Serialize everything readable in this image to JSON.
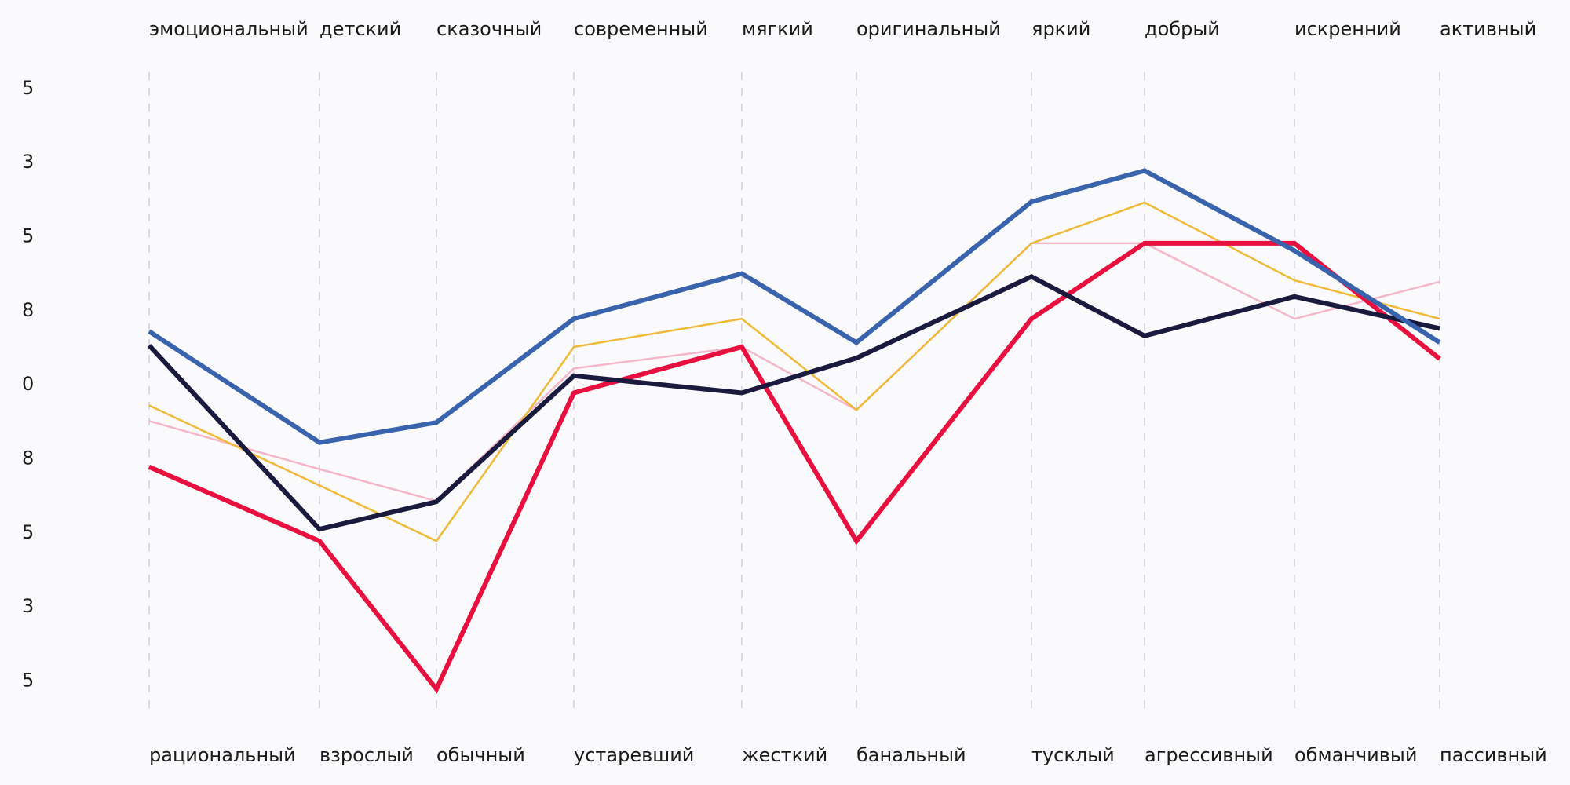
{
  "chart_data": {
    "type": "line",
    "categories": [
      "эмоциональный",
      "детский",
      "сказочный",
      "современный",
      "мягкий",
      "оригинальный",
      "яркий",
      "добрый",
      "искренний",
      "активный"
    ],
    "categories_bottom": [
      "рациональный",
      "взрослый",
      "обычный",
      "устаревший",
      "жесткий",
      "банальный",
      "тусклый",
      "агрессивный",
      "обманчивый",
      "пассивный"
    ],
    "ylim": [
      -4.43,
      4.22
    ],
    "yticks": [
      {
        "value": 4,
        "label": "5"
      },
      {
        "value": 3,
        "label": "3"
      },
      {
        "value": 2,
        "label": "5"
      },
      {
        "value": 1,
        "label": "8"
      },
      0,
      {
        "value": -1,
        "label": "8"
      },
      {
        "value": -2,
        "label": "5"
      },
      {
        "value": -3,
        "label": "3"
      },
      {
        "value": -4,
        "label": "5"
      }
    ],
    "series": [
      {
        "color": "#f4b6c8",
        "width": "thin",
        "values": [
          -0.49,
          -1.14,
          -1.57,
          0.22,
          0.51,
          -0.34,
          1.91,
          1.91,
          0.89,
          1.39
        ]
      },
      {
        "color": "#f0b93a",
        "width": "thin",
        "values": [
          -0.28,
          -1.36,
          -2.11,
          0.51,
          0.89,
          -0.34,
          1.91,
          2.46,
          1.41,
          0.89
        ]
      },
      {
        "color": "#e8103f",
        "width": "thick",
        "values": [
          -1.11,
          -2.11,
          -4.11,
          -0.11,
          0.51,
          -2.11,
          0.89,
          1.91,
          1.91,
          0.35
        ]
      },
      {
        "color": "#1a1a3e",
        "width": "thick",
        "values": [
          0.53,
          -1.95,
          -1.58,
          0.12,
          -0.11,
          0.36,
          1.46,
          0.66,
          1.19,
          0.76
        ]
      },
      {
        "color": "#3a63ad",
        "width": "thick",
        "values": [
          0.72,
          -0.78,
          -0.51,
          0.89,
          1.5,
          0.57,
          2.47,
          2.89,
          1.81,
          0.57
        ]
      }
    ]
  }
}
